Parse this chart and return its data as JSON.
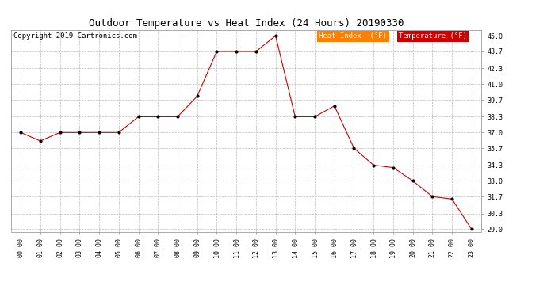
{
  "title": "Outdoor Temperature vs Heat Index (24 Hours) 20190330",
  "copyright": "Copyright 2019 Cartronics.com",
  "hours": [
    "00:00",
    "01:00",
    "02:00",
    "03:00",
    "04:00",
    "05:00",
    "06:00",
    "07:00",
    "08:00",
    "09:00",
    "10:00",
    "11:00",
    "12:00",
    "13:00",
    "14:00",
    "15:00",
    "16:00",
    "17:00",
    "18:00",
    "19:00",
    "20:00",
    "21:00",
    "22:00",
    "23:00"
  ],
  "temperature": [
    37.0,
    36.3,
    37.0,
    37.0,
    37.0,
    37.0,
    38.3,
    38.3,
    38.3,
    40.0,
    43.7,
    43.7,
    43.7,
    45.0,
    38.3,
    38.3,
    39.2,
    35.7,
    34.3,
    34.1,
    33.0,
    31.7,
    31.5,
    29.0
  ],
  "heat_index": [
    37.0,
    36.3,
    37.0,
    37.0,
    37.0,
    37.0,
    38.3,
    38.3,
    38.3,
    40.0,
    43.7,
    43.7,
    43.7,
    45.0,
    38.3,
    38.3,
    39.2,
    35.7,
    34.3,
    34.1,
    33.0,
    31.7,
    31.5,
    29.0
  ],
  "ylim_min": 29.0,
  "ylim_max": 45.0,
  "yticks": [
    29.0,
    30.3,
    31.7,
    33.0,
    34.3,
    35.7,
    37.0,
    38.3,
    39.7,
    41.0,
    42.3,
    43.7,
    45.0
  ],
  "line_color": "#cc0000",
  "marker_color": "#000000",
  "bg_color": "#ffffff",
  "grid_color": "#bbbbbb",
  "legend_heat_bg": "#ff8000",
  "legend_temp_bg": "#cc0000",
  "legend_text_color": "#ffffff",
  "title_fontsize": 9,
  "copyright_fontsize": 6.5,
  "tick_fontsize": 6,
  "legend_fontsize": 6.5
}
